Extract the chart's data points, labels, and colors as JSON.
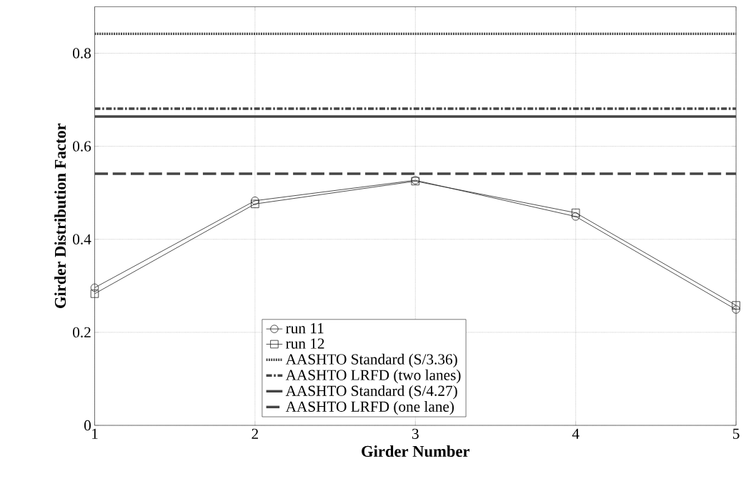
{
  "chart_data": {
    "type": "line",
    "xlabel": "Girder Number",
    "ylabel": "Girder Distribution Factor",
    "x": [
      1,
      2,
      3,
      4,
      5
    ],
    "xlim": [
      1,
      5
    ],
    "xticks": [
      1,
      2,
      3,
      4,
      5
    ],
    "ylim": [
      0,
      0.9
    ],
    "yticks": [
      0,
      0.2,
      0.4,
      0.6,
      0.8
    ],
    "grid": true,
    "legend": "bottom",
    "series": [
      {
        "name": "run 11",
        "color": "#222222",
        "values": [
          0.296,
          0.483,
          0.527,
          0.449,
          0.249
        ],
        "marker": "circle",
        "line_style": "solid"
      },
      {
        "name": "run 12",
        "color": "#222222",
        "values": [
          0.283,
          0.476,
          0.525,
          0.457,
          0.258
        ],
        "marker": "square",
        "line_style": "solid"
      },
      {
        "name": "AASHTO Standard (S/3.36)",
        "color": "#444444",
        "values": [
          0.842,
          0.842,
          0.842,
          0.842,
          0.842
        ],
        "marker": "none",
        "line_style": "dotted"
      },
      {
        "name": "AASHTO LRFD (two lanes)",
        "color": "#444444",
        "values": [
          0.681,
          0.681,
          0.681,
          0.681,
          0.681
        ],
        "marker": "none",
        "line_style": "dashed"
      },
      {
        "name": "AASHTO Standard (S/4.27)",
        "color": "#444444",
        "values": [
          0.664,
          0.664,
          0.664,
          0.664,
          0.664
        ],
        "marker": "none",
        "line_style": "solid"
      },
      {
        "name": "AASHTO LRFD (one lane)",
        "color": "#444444",
        "values": [
          0.541,
          0.541,
          0.541,
          0.541,
          0.541
        ],
        "marker": "none",
        "line_style": "longdash"
      }
    ]
  }
}
